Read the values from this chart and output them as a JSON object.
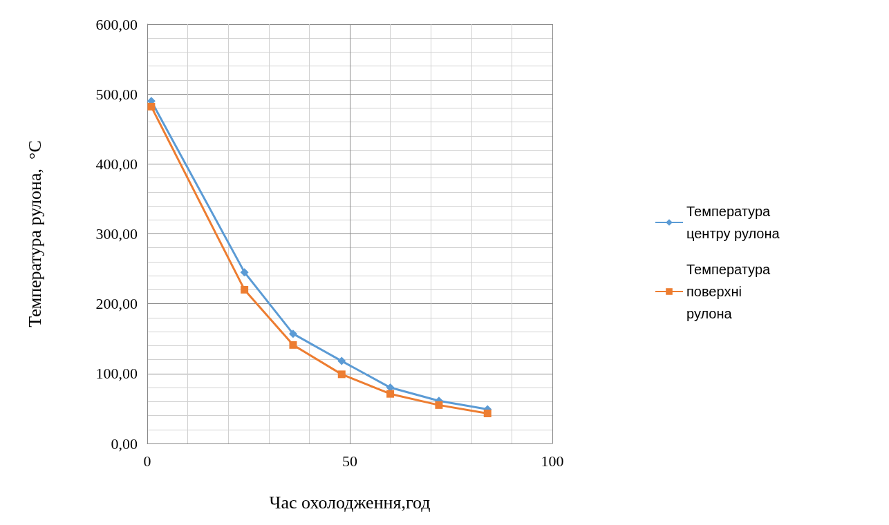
{
  "chart_data": {
    "type": "line",
    "xlabel": "Час охолодження,год",
    "ylabel": "Температура рулона,  °C",
    "xlim": [
      0,
      100
    ],
    "xticks": [
      0,
      50,
      100
    ],
    "ylim": [
      0,
      600
    ],
    "yticks": [
      {
        "value": 0,
        "label": "0,00"
      },
      {
        "value": 100,
        "label": "100,00"
      },
      {
        "value": 200,
        "label": "200,00"
      },
      {
        "value": 300,
        "label": "300,00"
      },
      {
        "value": 400,
        "label": "400,00"
      },
      {
        "value": 500,
        "label": "500,00"
      },
      {
        "value": 600,
        "label": "600,00"
      }
    ],
    "grid": true,
    "legend": "right",
    "line_style": "solid",
    "series": [
      {
        "name": "Температура центру рулона",
        "color": "#5b9bd5",
        "marker": "diamond",
        "x": [
          1,
          24,
          36,
          48,
          60,
          72,
          84
        ],
        "values": [
          490,
          245,
          157,
          118,
          80,
          61,
          49
        ]
      },
      {
        "name": "Температура поверхні рулона",
        "color": "#ed7d31",
        "marker": "square",
        "x": [
          1,
          24,
          36,
          48,
          60,
          72,
          84
        ],
        "values": [
          482,
          220,
          141,
          99,
          71,
          55,
          43
        ]
      }
    ]
  }
}
